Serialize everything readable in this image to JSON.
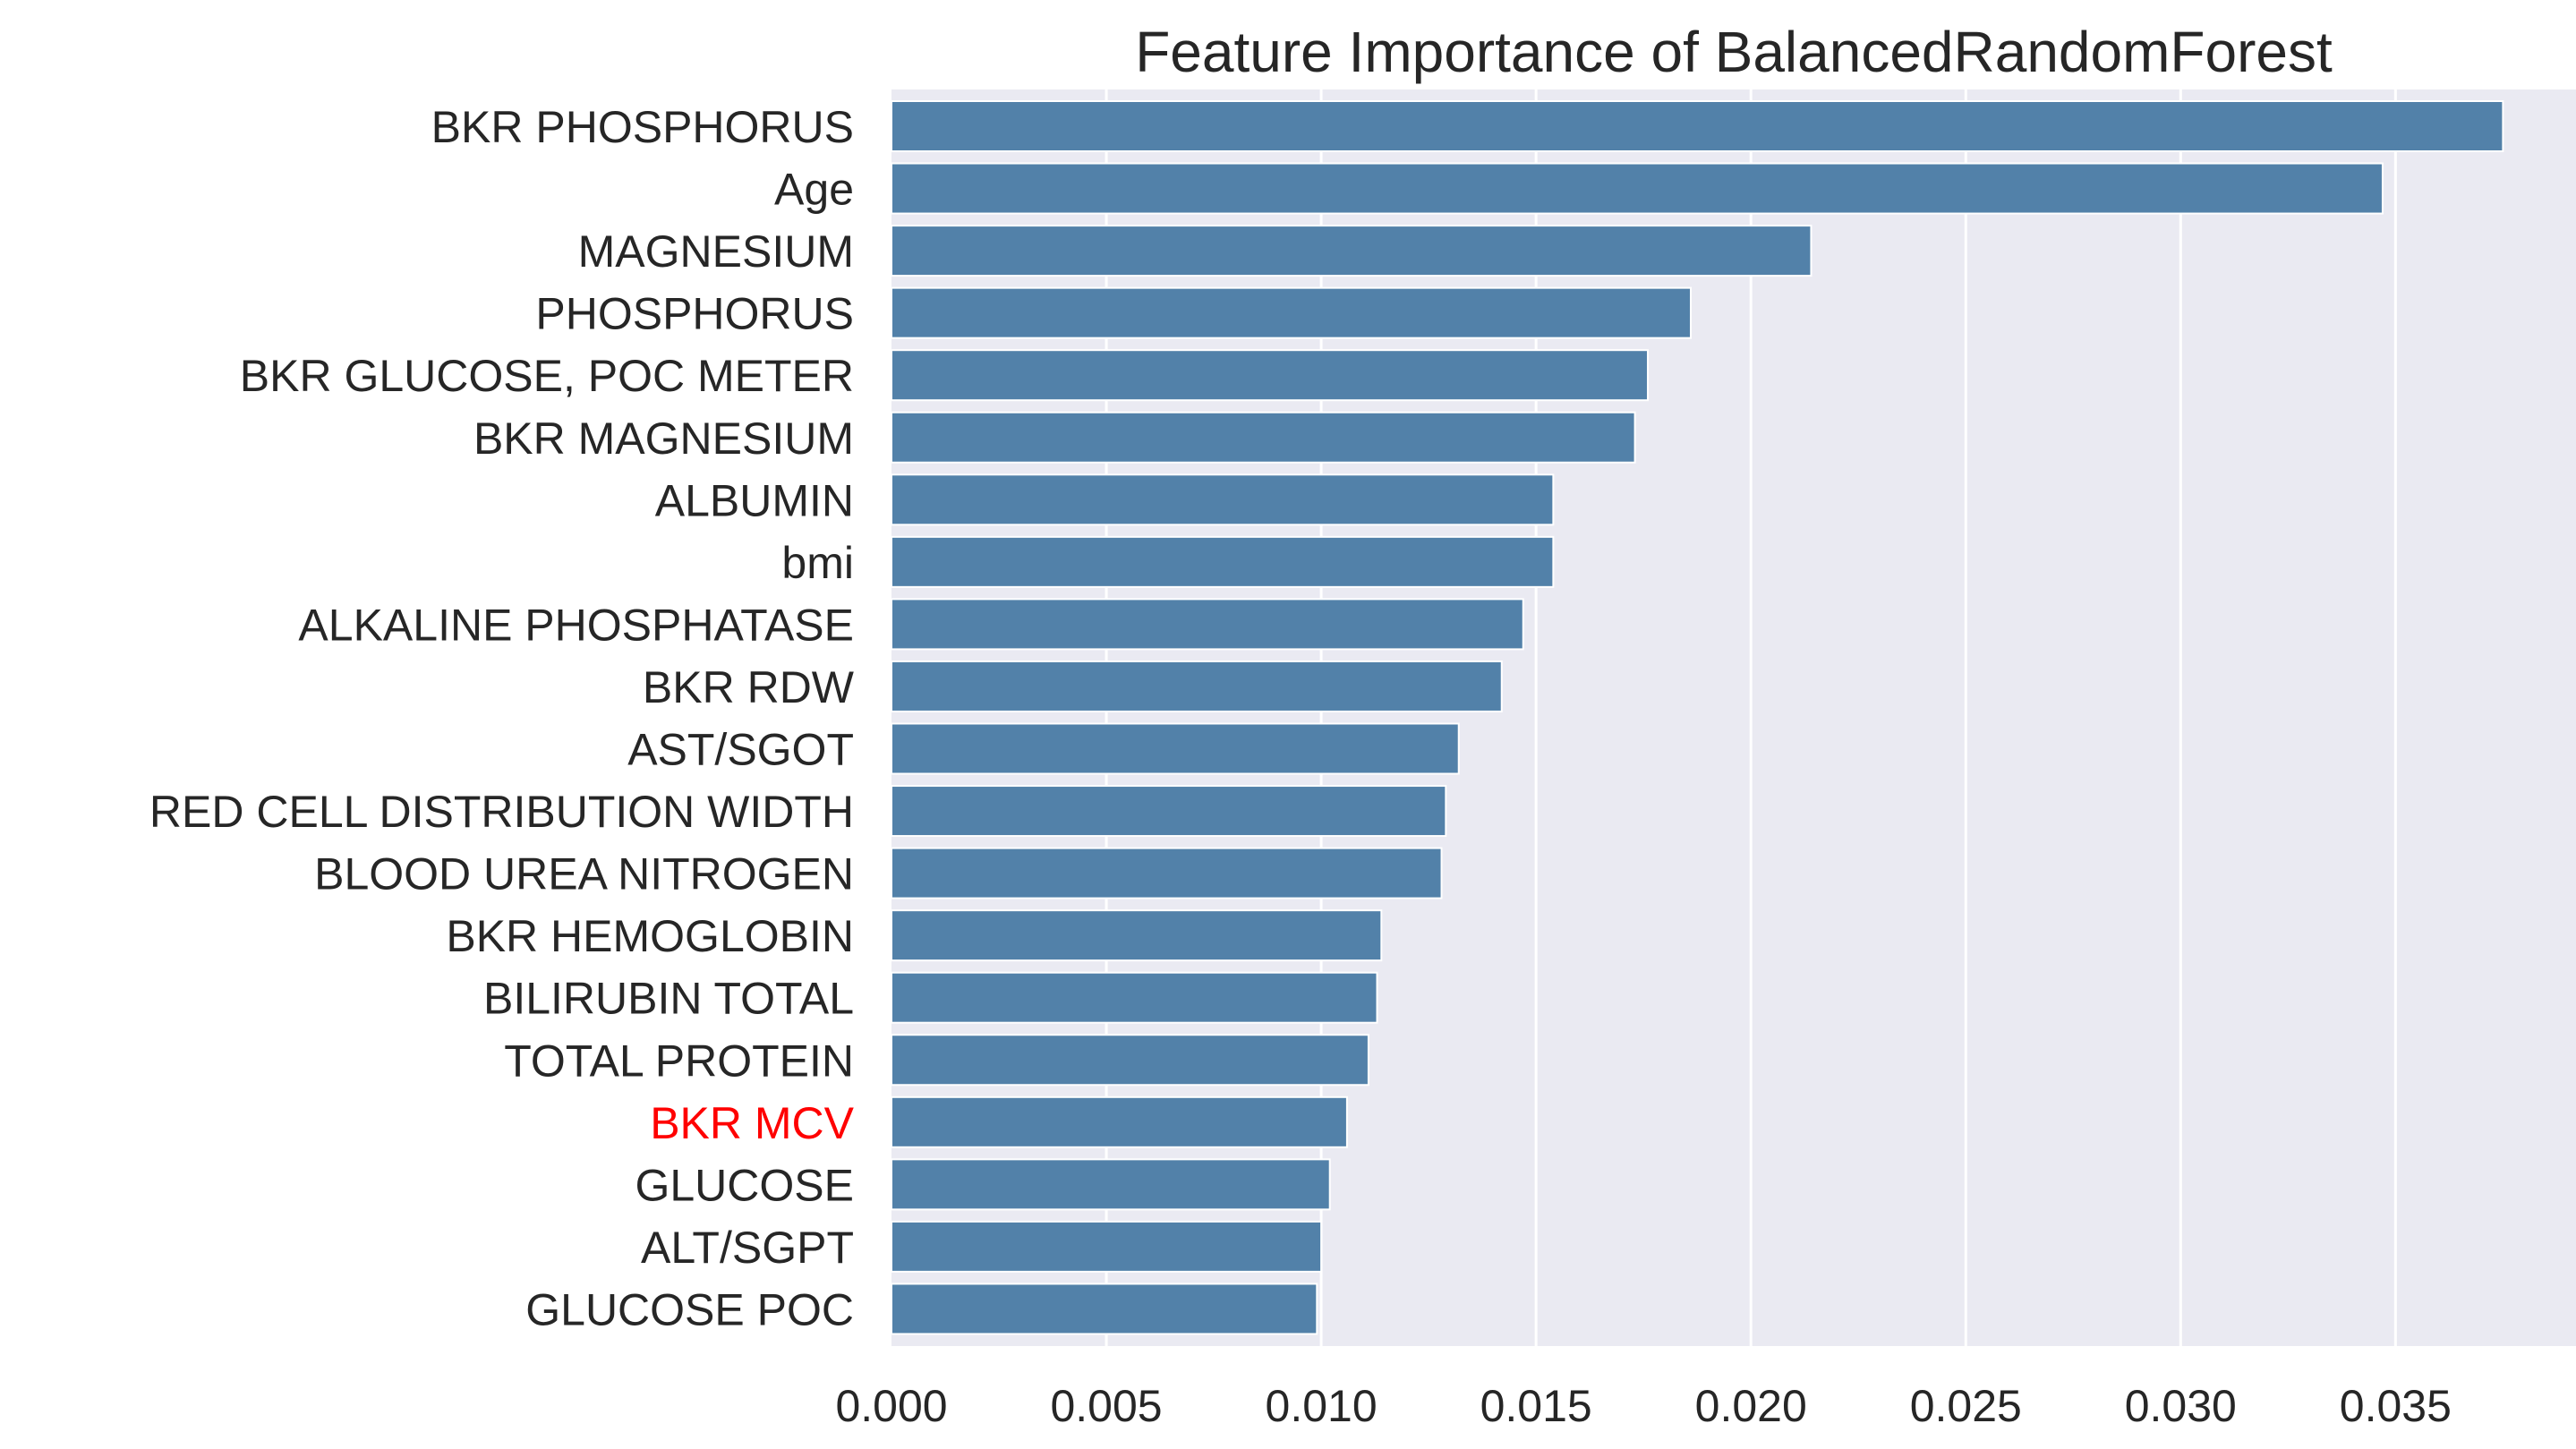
{
  "chart_data": {
    "type": "bar",
    "orientation": "horizontal",
    "title": "Feature Importance of BalancedRandomForest",
    "xlabel": "",
    "ylabel": "",
    "xlim": [
      0,
      0.0392
    ],
    "xticks": [
      "0.000",
      "0.005",
      "0.010",
      "0.015",
      "0.020",
      "0.025",
      "0.030",
      "0.035"
    ],
    "grid": true,
    "bar_color": "#5281a9",
    "background_color": "#eaeaf2",
    "gridline_color": "#ffffff",
    "label_color": "#262626",
    "highlight_color": "#ff0000",
    "categories": [
      "BKR PHOSPHORUS",
      "Age",
      "MAGNESIUM",
      "PHOSPHORUS",
      "BKR GLUCOSE, POC METER",
      "BKR MAGNESIUM",
      "ALBUMIN",
      "bmi",
      "ALKALINE PHOSPHATASE",
      "BKR RDW",
      "AST/SGOT",
      "RED CELL DISTRIBUTION WIDTH",
      "BLOOD UREA NITROGEN",
      "BKR HEMOGLOBIN",
      "BILIRUBIN TOTAL",
      "TOTAL PROTEIN",
      "BKR MCV",
      "GLUCOSE",
      "ALT/SGPT",
      "GLUCOSE POC"
    ],
    "values": [
      0.0375,
      0.0347,
      0.0214,
      0.0186,
      0.0176,
      0.0173,
      0.0154,
      0.0154,
      0.0147,
      0.0142,
      0.0132,
      0.0129,
      0.0128,
      0.0114,
      0.0113,
      0.0111,
      0.0106,
      0.0102,
      0.01,
      0.0099
    ],
    "highlighted_categories": [
      "BKR MCV"
    ]
  }
}
